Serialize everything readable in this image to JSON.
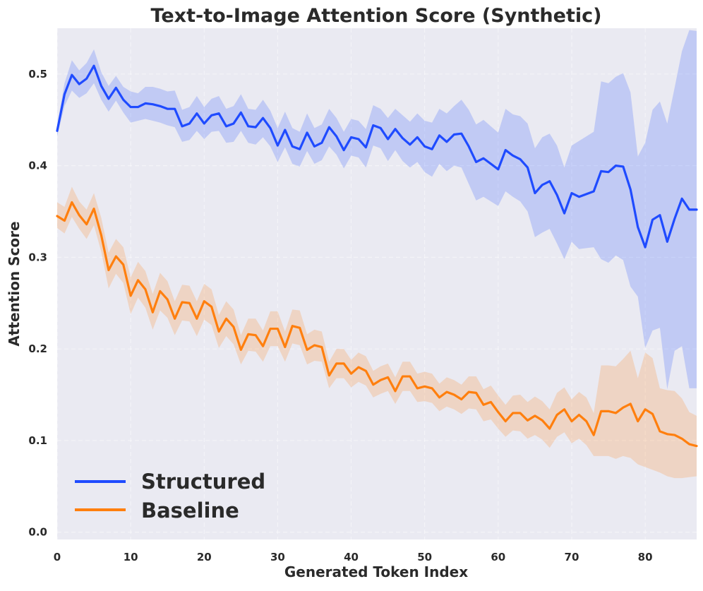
{
  "chart_data": {
    "type": "line",
    "title": "Text-to-Image Attention Score (Synthetic)",
    "xlabel": "Generated Token Index",
    "ylabel": "Attention Score",
    "xlim": [
      0,
      87
    ],
    "ylim": [
      -0.008,
      0.55
    ],
    "xticks": [
      0,
      10,
      20,
      30,
      40,
      50,
      60,
      70,
      80
    ],
    "yticks": [
      0.0,
      0.1,
      0.2,
      0.3,
      0.4,
      0.5
    ],
    "ytick_labels": [
      "0.0",
      "0.1",
      "0.2",
      "0.3",
      "0.4",
      "0.5"
    ],
    "grid": true,
    "legend_position": "bottom-left",
    "colors": {
      "background": "#eaeaf2",
      "structured": "#1f4bff",
      "baseline": "#ff7f0e"
    },
    "series": [
      {
        "name": "Structured",
        "color": "#1f4bff",
        "x": [
          0,
          1,
          2,
          3,
          4,
          5,
          6,
          7,
          8,
          9,
          10,
          11,
          12,
          13,
          14,
          15,
          16,
          17,
          18,
          19,
          20,
          21,
          22,
          23,
          24,
          25,
          26,
          27,
          28,
          29,
          30,
          31,
          32,
          33,
          34,
          35,
          36,
          37,
          38,
          39,
          40,
          41,
          42,
          43,
          44,
          45,
          46,
          47,
          48,
          49,
          50,
          51,
          52,
          53,
          54,
          55,
          56,
          57,
          58,
          59,
          60,
          61,
          62,
          63,
          64,
          65,
          66,
          67,
          68,
          69,
          70,
          71,
          72,
          73,
          74,
          75,
          76,
          77,
          78,
          79,
          80,
          81,
          82,
          83,
          84,
          85,
          86,
          87
        ],
        "values": [
          0.438,
          0.478,
          0.499,
          0.489,
          0.495,
          0.509,
          0.487,
          0.473,
          0.485,
          0.472,
          0.464,
          0.464,
          0.468,
          0.467,
          0.465,
          0.462,
          0.462,
          0.443,
          0.446,
          0.457,
          0.446,
          0.455,
          0.457,
          0.443,
          0.446,
          0.458,
          0.443,
          0.442,
          0.452,
          0.441,
          0.422,
          0.439,
          0.421,
          0.418,
          0.436,
          0.421,
          0.425,
          0.442,
          0.432,
          0.417,
          0.431,
          0.429,
          0.42,
          0.444,
          0.441,
          0.429,
          0.44,
          0.43,
          0.423,
          0.431,
          0.421,
          0.418,
          0.433,
          0.426,
          0.434,
          0.435,
          0.421,
          0.404,
          0.408,
          0.402,
          0.396,
          0.417,
          0.411,
          0.407,
          0.398,
          0.37,
          0.379,
          0.383,
          0.368,
          0.348,
          0.37,
          0.366,
          0.369,
          0.372,
          0.394,
          0.393,
          0.4,
          0.399,
          0.374,
          0.333,
          0.311,
          0.341,
          0.346,
          0.317,
          0.342,
          0.364,
          0.352,
          0.352
        ],
        "lower": [
          0.432,
          0.465,
          0.482,
          0.474,
          0.479,
          0.49,
          0.472,
          0.459,
          0.471,
          0.458,
          0.447,
          0.449,
          0.451,
          0.449,
          0.447,
          0.444,
          0.442,
          0.426,
          0.428,
          0.438,
          0.429,
          0.437,
          0.438,
          0.425,
          0.426,
          0.438,
          0.425,
          0.423,
          0.431,
          0.421,
          0.404,
          0.42,
          0.402,
          0.399,
          0.416,
          0.402,
          0.406,
          0.421,
          0.412,
          0.397,
          0.411,
          0.409,
          0.398,
          0.422,
          0.419,
          0.405,
          0.417,
          0.405,
          0.398,
          0.404,
          0.393,
          0.388,
          0.402,
          0.394,
          0.4,
          0.398,
          0.38,
          0.362,
          0.366,
          0.361,
          0.356,
          0.372,
          0.366,
          0.361,
          0.35,
          0.322,
          0.327,
          0.331,
          0.315,
          0.298,
          0.317,
          0.309,
          0.31,
          0.311,
          0.298,
          0.294,
          0.302,
          0.297,
          0.268,
          0.257,
          0.201,
          0.22,
          0.223,
          0.156,
          0.198,
          0.203,
          0.157,
          0.157
        ],
        "upper": [
          0.444,
          0.49,
          0.515,
          0.504,
          0.512,
          0.527,
          0.502,
          0.487,
          0.498,
          0.486,
          0.481,
          0.479,
          0.486,
          0.486,
          0.484,
          0.481,
          0.482,
          0.461,
          0.464,
          0.476,
          0.464,
          0.473,
          0.476,
          0.462,
          0.465,
          0.478,
          0.462,
          0.461,
          0.472,
          0.46,
          0.441,
          0.459,
          0.441,
          0.437,
          0.457,
          0.441,
          0.445,
          0.462,
          0.452,
          0.437,
          0.451,
          0.449,
          0.44,
          0.466,
          0.462,
          0.452,
          0.462,
          0.455,
          0.448,
          0.457,
          0.449,
          0.447,
          0.462,
          0.457,
          0.465,
          0.472,
          0.461,
          0.445,
          0.45,
          0.443,
          0.436,
          0.462,
          0.456,
          0.454,
          0.446,
          0.419,
          0.431,
          0.435,
          0.422,
          0.398,
          0.422,
          0.427,
          0.432,
          0.437,
          0.492,
          0.49,
          0.497,
          0.501,
          0.48,
          0.41,
          0.425,
          0.461,
          0.47,
          0.446,
          0.485,
          0.525,
          0.548,
          0.547
        ]
      },
      {
        "name": "Baseline",
        "color": "#ff7f0e",
        "x": [
          0,
          1,
          2,
          3,
          4,
          5,
          6,
          7,
          8,
          9,
          10,
          11,
          12,
          13,
          14,
          15,
          16,
          17,
          18,
          19,
          20,
          21,
          22,
          23,
          24,
          25,
          26,
          27,
          28,
          29,
          30,
          31,
          32,
          33,
          34,
          35,
          36,
          37,
          38,
          39,
          40,
          41,
          42,
          43,
          44,
          45,
          46,
          47,
          48,
          49,
          50,
          51,
          52,
          53,
          54,
          55,
          56,
          57,
          58,
          59,
          60,
          61,
          62,
          63,
          64,
          65,
          66,
          67,
          68,
          69,
          70,
          71,
          72,
          73,
          74,
          75,
          76,
          77,
          78,
          79,
          80,
          81,
          82,
          83,
          84,
          85,
          86,
          87
        ],
        "values": [
          0.345,
          0.34,
          0.36,
          0.346,
          0.336,
          0.353,
          0.324,
          0.286,
          0.301,
          0.292,
          0.258,
          0.275,
          0.265,
          0.24,
          0.263,
          0.254,
          0.233,
          0.251,
          0.25,
          0.233,
          0.252,
          0.246,
          0.219,
          0.233,
          0.224,
          0.199,
          0.216,
          0.215,
          0.203,
          0.222,
          0.222,
          0.202,
          0.225,
          0.223,
          0.199,
          0.204,
          0.202,
          0.171,
          0.184,
          0.184,
          0.173,
          0.18,
          0.176,
          0.161,
          0.166,
          0.169,
          0.154,
          0.17,
          0.17,
          0.157,
          0.159,
          0.157,
          0.147,
          0.153,
          0.15,
          0.145,
          0.153,
          0.152,
          0.139,
          0.142,
          0.131,
          0.121,
          0.13,
          0.13,
          0.122,
          0.127,
          0.122,
          0.113,
          0.128,
          0.134,
          0.121,
          0.128,
          0.121,
          0.106,
          0.132,
          0.132,
          0.13,
          0.136,
          0.14,
          0.121,
          0.134,
          0.129,
          0.11,
          0.107,
          0.106,
          0.102,
          0.096,
          0.094
        ],
        "lower": [
          0.332,
          0.326,
          0.344,
          0.331,
          0.32,
          0.335,
          0.306,
          0.266,
          0.282,
          0.272,
          0.238,
          0.256,
          0.245,
          0.221,
          0.242,
          0.234,
          0.215,
          0.231,
          0.23,
          0.214,
          0.232,
          0.226,
          0.201,
          0.214,
          0.205,
          0.183,
          0.198,
          0.197,
          0.186,
          0.203,
          0.203,
          0.186,
          0.206,
          0.204,
          0.183,
          0.187,
          0.186,
          0.157,
          0.168,
          0.168,
          0.158,
          0.164,
          0.16,
          0.147,
          0.151,
          0.154,
          0.14,
          0.154,
          0.154,
          0.142,
          0.143,
          0.141,
          0.132,
          0.137,
          0.134,
          0.129,
          0.135,
          0.134,
          0.121,
          0.123,
          0.113,
          0.104,
          0.111,
          0.11,
          0.102,
          0.106,
          0.101,
          0.092,
          0.104,
          0.109,
          0.097,
          0.102,
          0.095,
          0.083,
          0.083,
          0.083,
          0.08,
          0.083,
          0.081,
          0.074,
          0.071,
          0.068,
          0.065,
          0.061,
          0.059,
          0.059,
          0.06,
          0.061
        ],
        "upper": [
          0.36,
          0.355,
          0.377,
          0.361,
          0.352,
          0.37,
          0.343,
          0.305,
          0.32,
          0.311,
          0.278,
          0.295,
          0.285,
          0.26,
          0.283,
          0.274,
          0.252,
          0.27,
          0.269,
          0.252,
          0.271,
          0.265,
          0.237,
          0.252,
          0.243,
          0.215,
          0.233,
          0.233,
          0.22,
          0.241,
          0.241,
          0.219,
          0.243,
          0.242,
          0.216,
          0.221,
          0.219,
          0.186,
          0.2,
          0.2,
          0.188,
          0.196,
          0.192,
          0.176,
          0.181,
          0.184,
          0.169,
          0.186,
          0.186,
          0.173,
          0.175,
          0.173,
          0.162,
          0.169,
          0.166,
          0.161,
          0.17,
          0.17,
          0.156,
          0.16,
          0.149,
          0.139,
          0.149,
          0.15,
          0.142,
          0.148,
          0.143,
          0.134,
          0.152,
          0.158,
          0.145,
          0.153,
          0.147,
          0.13,
          0.182,
          0.182,
          0.181,
          0.189,
          0.198,
          0.168,
          0.196,
          0.19,
          0.157,
          0.155,
          0.154,
          0.146,
          0.131,
          0.127
        ]
      }
    ]
  }
}
